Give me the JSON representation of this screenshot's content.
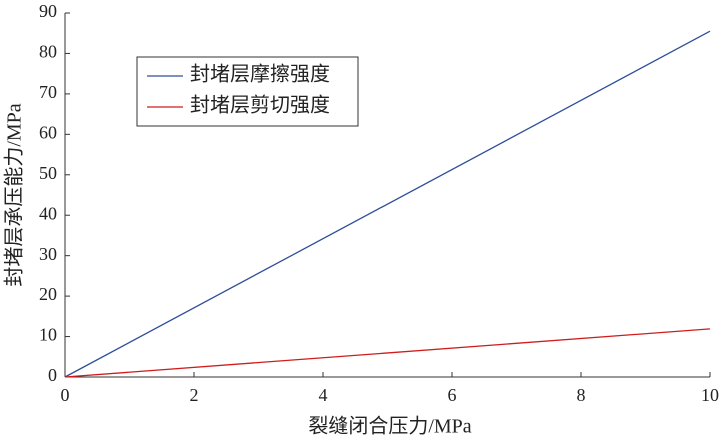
{
  "chart_data": {
    "type": "line",
    "x_label": "裂缝闭合压力/MPa",
    "y_label": "封堵层承压能力/MPa",
    "x": [
      0,
      10
    ],
    "series": [
      {
        "name": "封堵层摩擦强度",
        "color": "#2f4f9a",
        "values": [
          0,
          85.5
        ]
      },
      {
        "name": "封堵层剪切强度",
        "color": "#d01c1c",
        "values": [
          0,
          11.9
        ]
      }
    ],
    "xlim": [
      0,
      10
    ],
    "xticks": [
      0,
      2,
      4,
      6,
      8,
      10
    ],
    "ylim": [
      0,
      90
    ],
    "yticks": [
      0,
      10,
      20,
      30,
      40,
      50,
      60,
      70,
      80,
      90
    ],
    "legend": "upper-left"
  }
}
